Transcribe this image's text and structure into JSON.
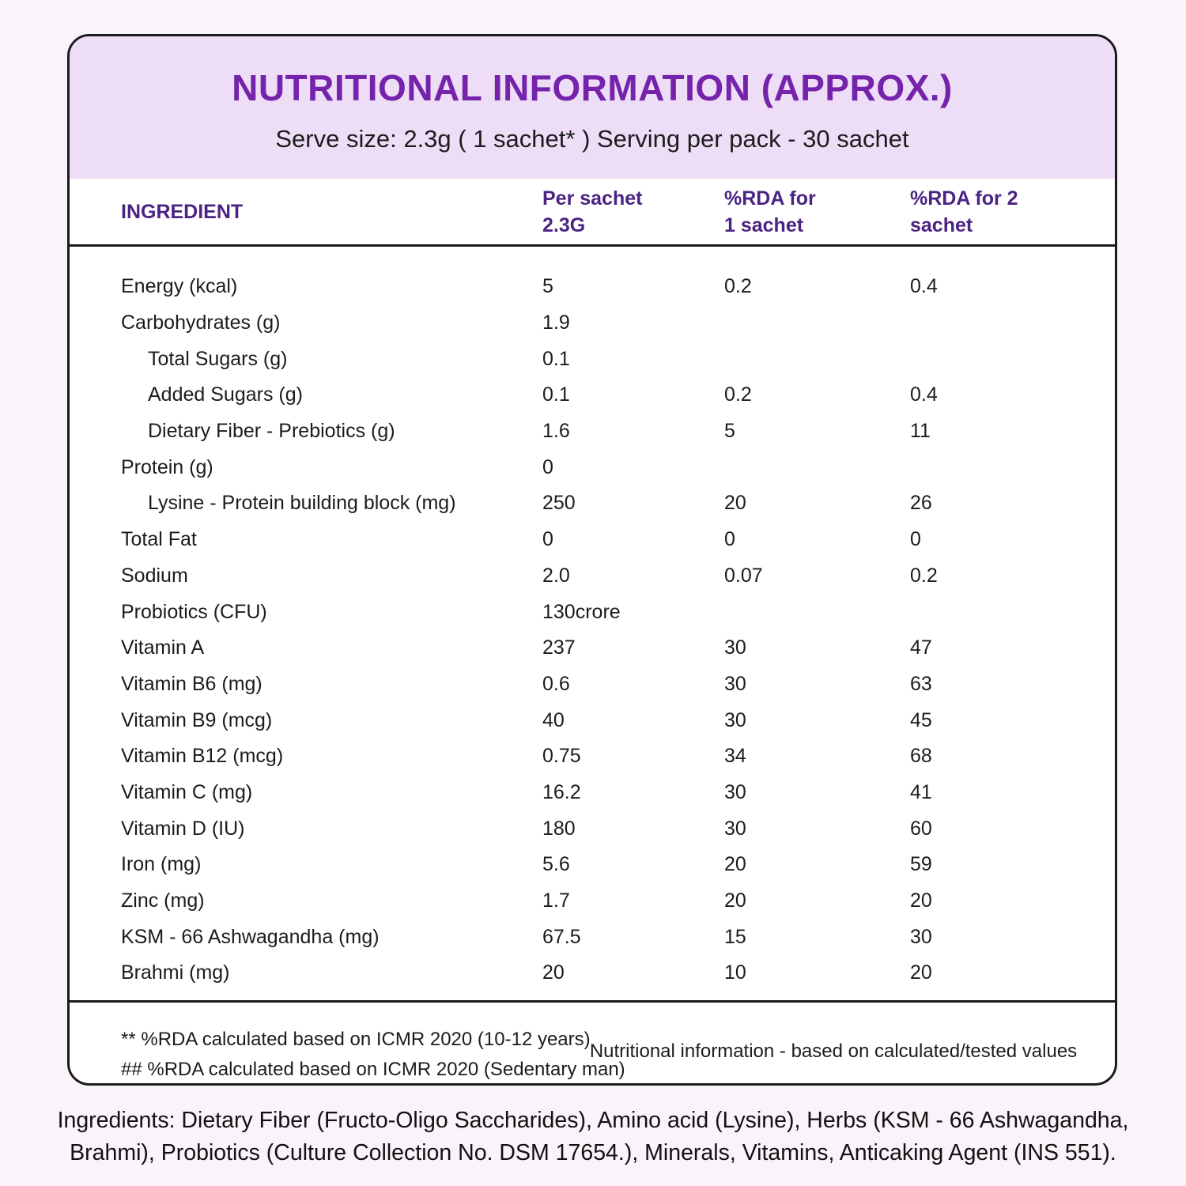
{
  "colors": {
    "page_background": "#faf3fa",
    "card_background": "#ffffff",
    "card_border": "#1b1b1b",
    "header_band": "#eeddf7",
    "title_purple": "#7423aa",
    "column_header_purple": "#4b2382",
    "body_text": "#1c1c1c"
  },
  "header": {
    "title": "NUTRITIONAL INFORMATION (APPROX.)",
    "subtitle": "Serve size: 2.3g ( 1 sachet* ) Serving per pack - 30 sachet"
  },
  "table": {
    "columns": [
      {
        "line1": "INGREDIENT",
        "line2": ""
      },
      {
        "line1": "Per sachet",
        "line2": "2.3G"
      },
      {
        "line1": "%RDA for",
        "line2": "1 sachet"
      },
      {
        "line1": "%RDA for 2",
        "line2": "sachet"
      }
    ],
    "rows": [
      {
        "name": "Energy (kcal)",
        "indent": false,
        "per_sachet": "5",
        "rda_1": "0.2",
        "rda_2": "0.4"
      },
      {
        "name": "Carbohydrates (g)",
        "indent": false,
        "per_sachet": "1.9",
        "rda_1": "",
        "rda_2": ""
      },
      {
        "name": "Total Sugars (g)",
        "indent": true,
        "per_sachet": "0.1",
        "rda_1": "",
        "rda_2": ""
      },
      {
        "name": "Added Sugars (g)",
        "indent": true,
        "per_sachet": "0.1",
        "rda_1": "0.2",
        "rda_2": "0.4"
      },
      {
        "name": "Dietary Fiber - Prebiotics (g)",
        "indent": true,
        "per_sachet": "1.6",
        "rda_1": "5",
        "rda_2": "11"
      },
      {
        "name": "Protein (g)",
        "indent": false,
        "per_sachet": "0",
        "rda_1": "",
        "rda_2": ""
      },
      {
        "name": "Lysine - Protein building block (mg)",
        "indent": true,
        "per_sachet": "250",
        "rda_1": "20",
        "rda_2": "26"
      },
      {
        "name": "Total Fat",
        "indent": false,
        "per_sachet": "0",
        "rda_1": "0",
        "rda_2": "0"
      },
      {
        "name": "Sodium",
        "indent": false,
        "per_sachet": "2.0",
        "rda_1": "0.07",
        "rda_2": "0.2"
      },
      {
        "name": "Probiotics (CFU)",
        "indent": false,
        "per_sachet": "130crore",
        "rda_1": "",
        "rda_2": ""
      },
      {
        "name": "Vitamin A",
        "indent": false,
        "per_sachet": "237",
        "rda_1": "30",
        "rda_2": "47"
      },
      {
        "name": "Vitamin B6 (mg)",
        "indent": false,
        "per_sachet": "0.6",
        "rda_1": "30",
        "rda_2": "63"
      },
      {
        "name": "Vitamin B9 (mcg)",
        "indent": false,
        "per_sachet": "40",
        "rda_1": "30",
        "rda_2": "45"
      },
      {
        "name": "Vitamin B12 (mcg)",
        "indent": false,
        "per_sachet": "0.75",
        "rda_1": "34",
        "rda_2": "68"
      },
      {
        "name": "Vitamin C (mg)",
        "indent": false,
        "per_sachet": "16.2",
        "rda_1": "30",
        "rda_2": "41"
      },
      {
        "name": "Vitamin D (IU)",
        "indent": false,
        "per_sachet": "180",
        "rda_1": "30",
        "rda_2": "60"
      },
      {
        "name": "Iron (mg)",
        "indent": false,
        "per_sachet": "5.6",
        "rda_1": "20",
        "rda_2": "59"
      },
      {
        "name": "Zinc (mg)",
        "indent": false,
        "per_sachet": "1.7",
        "rda_1": "20",
        "rda_2": "20"
      },
      {
        "name": "KSM - 66 Ashwagandha (mg)",
        "indent": false,
        "per_sachet": "67.5",
        "rda_1": "15",
        "rda_2": "30"
      },
      {
        "name": "Brahmi (mg)",
        "indent": false,
        "per_sachet": "20",
        "rda_1": "10",
        "rda_2": "20"
      }
    ]
  },
  "footnotes": {
    "left_line1": "** %RDA calculated based on ICMR 2020 (10-12 years)",
    "left_line2": "## %RDA calculated based on ICMR 2020 (Sedentary man)",
    "right": "Nutritional information - based on calculated/tested values"
  },
  "ingredients_text": "Ingredients: Dietary Fiber (Fructo-Oligo Saccharides), Amino acid (Lysine), Herbs (KSM - 66 Ashwagandha, Brahmi), Probiotics (Culture Collection No. DSM 17654.), Minerals, Vitamins, Anticaking Agent (INS 551)."
}
